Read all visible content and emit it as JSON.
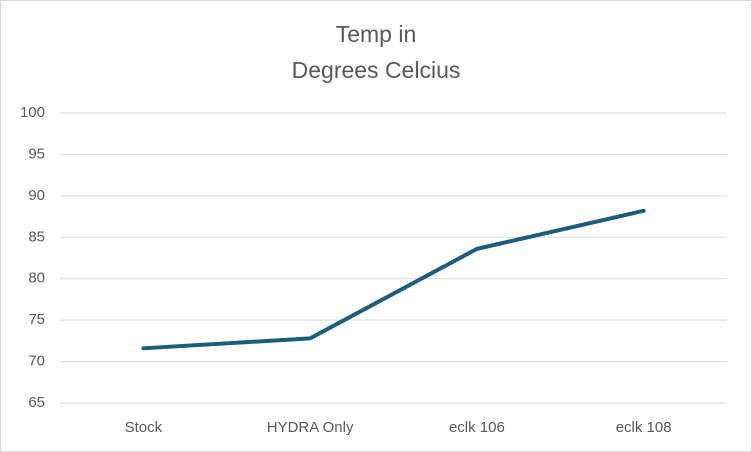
{
  "chart_data": {
    "type": "line",
    "title": [
      "Temp in",
      "Degrees Celcius"
    ],
    "categories": [
      "Stock",
      "HYDRA Only",
      "eclk 106",
      "eclk 108"
    ],
    "series": [
      {
        "values": [
          71.6,
          72.8,
          83.6,
          88.2
        ],
        "color": "#1b5e7b"
      }
    ],
    "ylim": [
      65,
      100
    ],
    "yticks": [
      65,
      70,
      75,
      80,
      85,
      90,
      95,
      100
    ],
    "grid": true
  }
}
